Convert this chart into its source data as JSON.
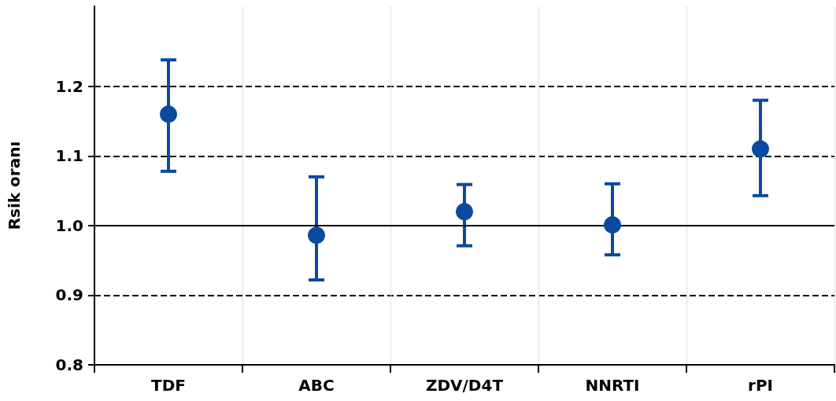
{
  "chart_data": {
    "type": "scatter",
    "ylabel": "Rsik oranı",
    "categories": [
      "TDF",
      "ABC",
      "ZDV/D4T",
      "NNRTI",
      "rPI"
    ],
    "series": [
      {
        "color": "#0b4a9f",
        "values": [
          1.16,
          0.986,
          1.02,
          1.001,
          1.11
        ],
        "errors": [
          [
            1.078,
            1.238
          ],
          [
            0.922,
            1.07
          ],
          [
            0.971,
            1.059
          ],
          [
            0.958,
            1.06
          ],
          [
            1.043,
            1.18
          ]
        ]
      }
    ],
    "ylim": [
      0.8,
      1.315
    ],
    "yticks": [
      {
        "value": 0.8,
        "label": "0.8"
      },
      {
        "value": 0.9,
        "label": "0.9"
      },
      {
        "value": 1,
        "label": "1.0"
      },
      {
        "value": 1.1,
        "label": "1.1"
      },
      {
        "value": 1.2,
        "label": "1.2"
      }
    ],
    "grid": true,
    "marker": "circle",
    "line_style": "dashed",
    "ref_lines": [
      {
        "axis": "y",
        "value": 1.0,
        "color": "#000000",
        "line_style": "solid"
      }
    ]
  }
}
